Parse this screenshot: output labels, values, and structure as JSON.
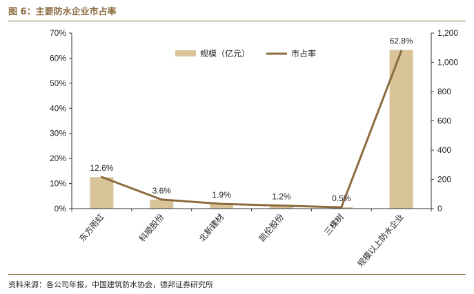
{
  "figure_title": "图 6：主要防水企业市占率",
  "source": "资料来源：各公司年报，中国建筑防水协会，德邦证券研究所",
  "colors": {
    "bar": "#D9C49A",
    "line": "#8B6A3E",
    "axis": "#333333",
    "rule": "#8B6A3E"
  },
  "chart_data": {
    "type": "bar",
    "categories": [
      "东方雨虹",
      "科顺股份",
      "北新建材",
      "凯伦股份",
      "三棵树",
      "规模以上防水企业"
    ],
    "series": [
      {
        "name": "规模（亿元）",
        "type": "bar",
        "axis": "right",
        "values": [
          215,
          62,
          33,
          21,
          9,
          1085
        ]
      },
      {
        "name": "市占率",
        "type": "line",
        "axis": "left",
        "values": [
          12.6,
          3.6,
          1.9,
          1.2,
          0.5,
          62.8
        ],
        "labels": [
          "12.6%",
          "3.6%",
          "1.9%",
          "1.2%",
          "0.5%",
          "62.8%"
        ]
      }
    ],
    "y_left": {
      "ylim": [
        0,
        70
      ],
      "ticks": [
        "0%",
        "10%",
        "20%",
        "30%",
        "40%",
        "50%",
        "60%",
        "70%"
      ]
    },
    "y_right": {
      "ylim": [
        0,
        1200
      ],
      "ticks": [
        "0",
        "200",
        "400",
        "600",
        "800",
        "1,000",
        "1,200"
      ]
    },
    "legend_position": "top-center",
    "grid": false
  }
}
